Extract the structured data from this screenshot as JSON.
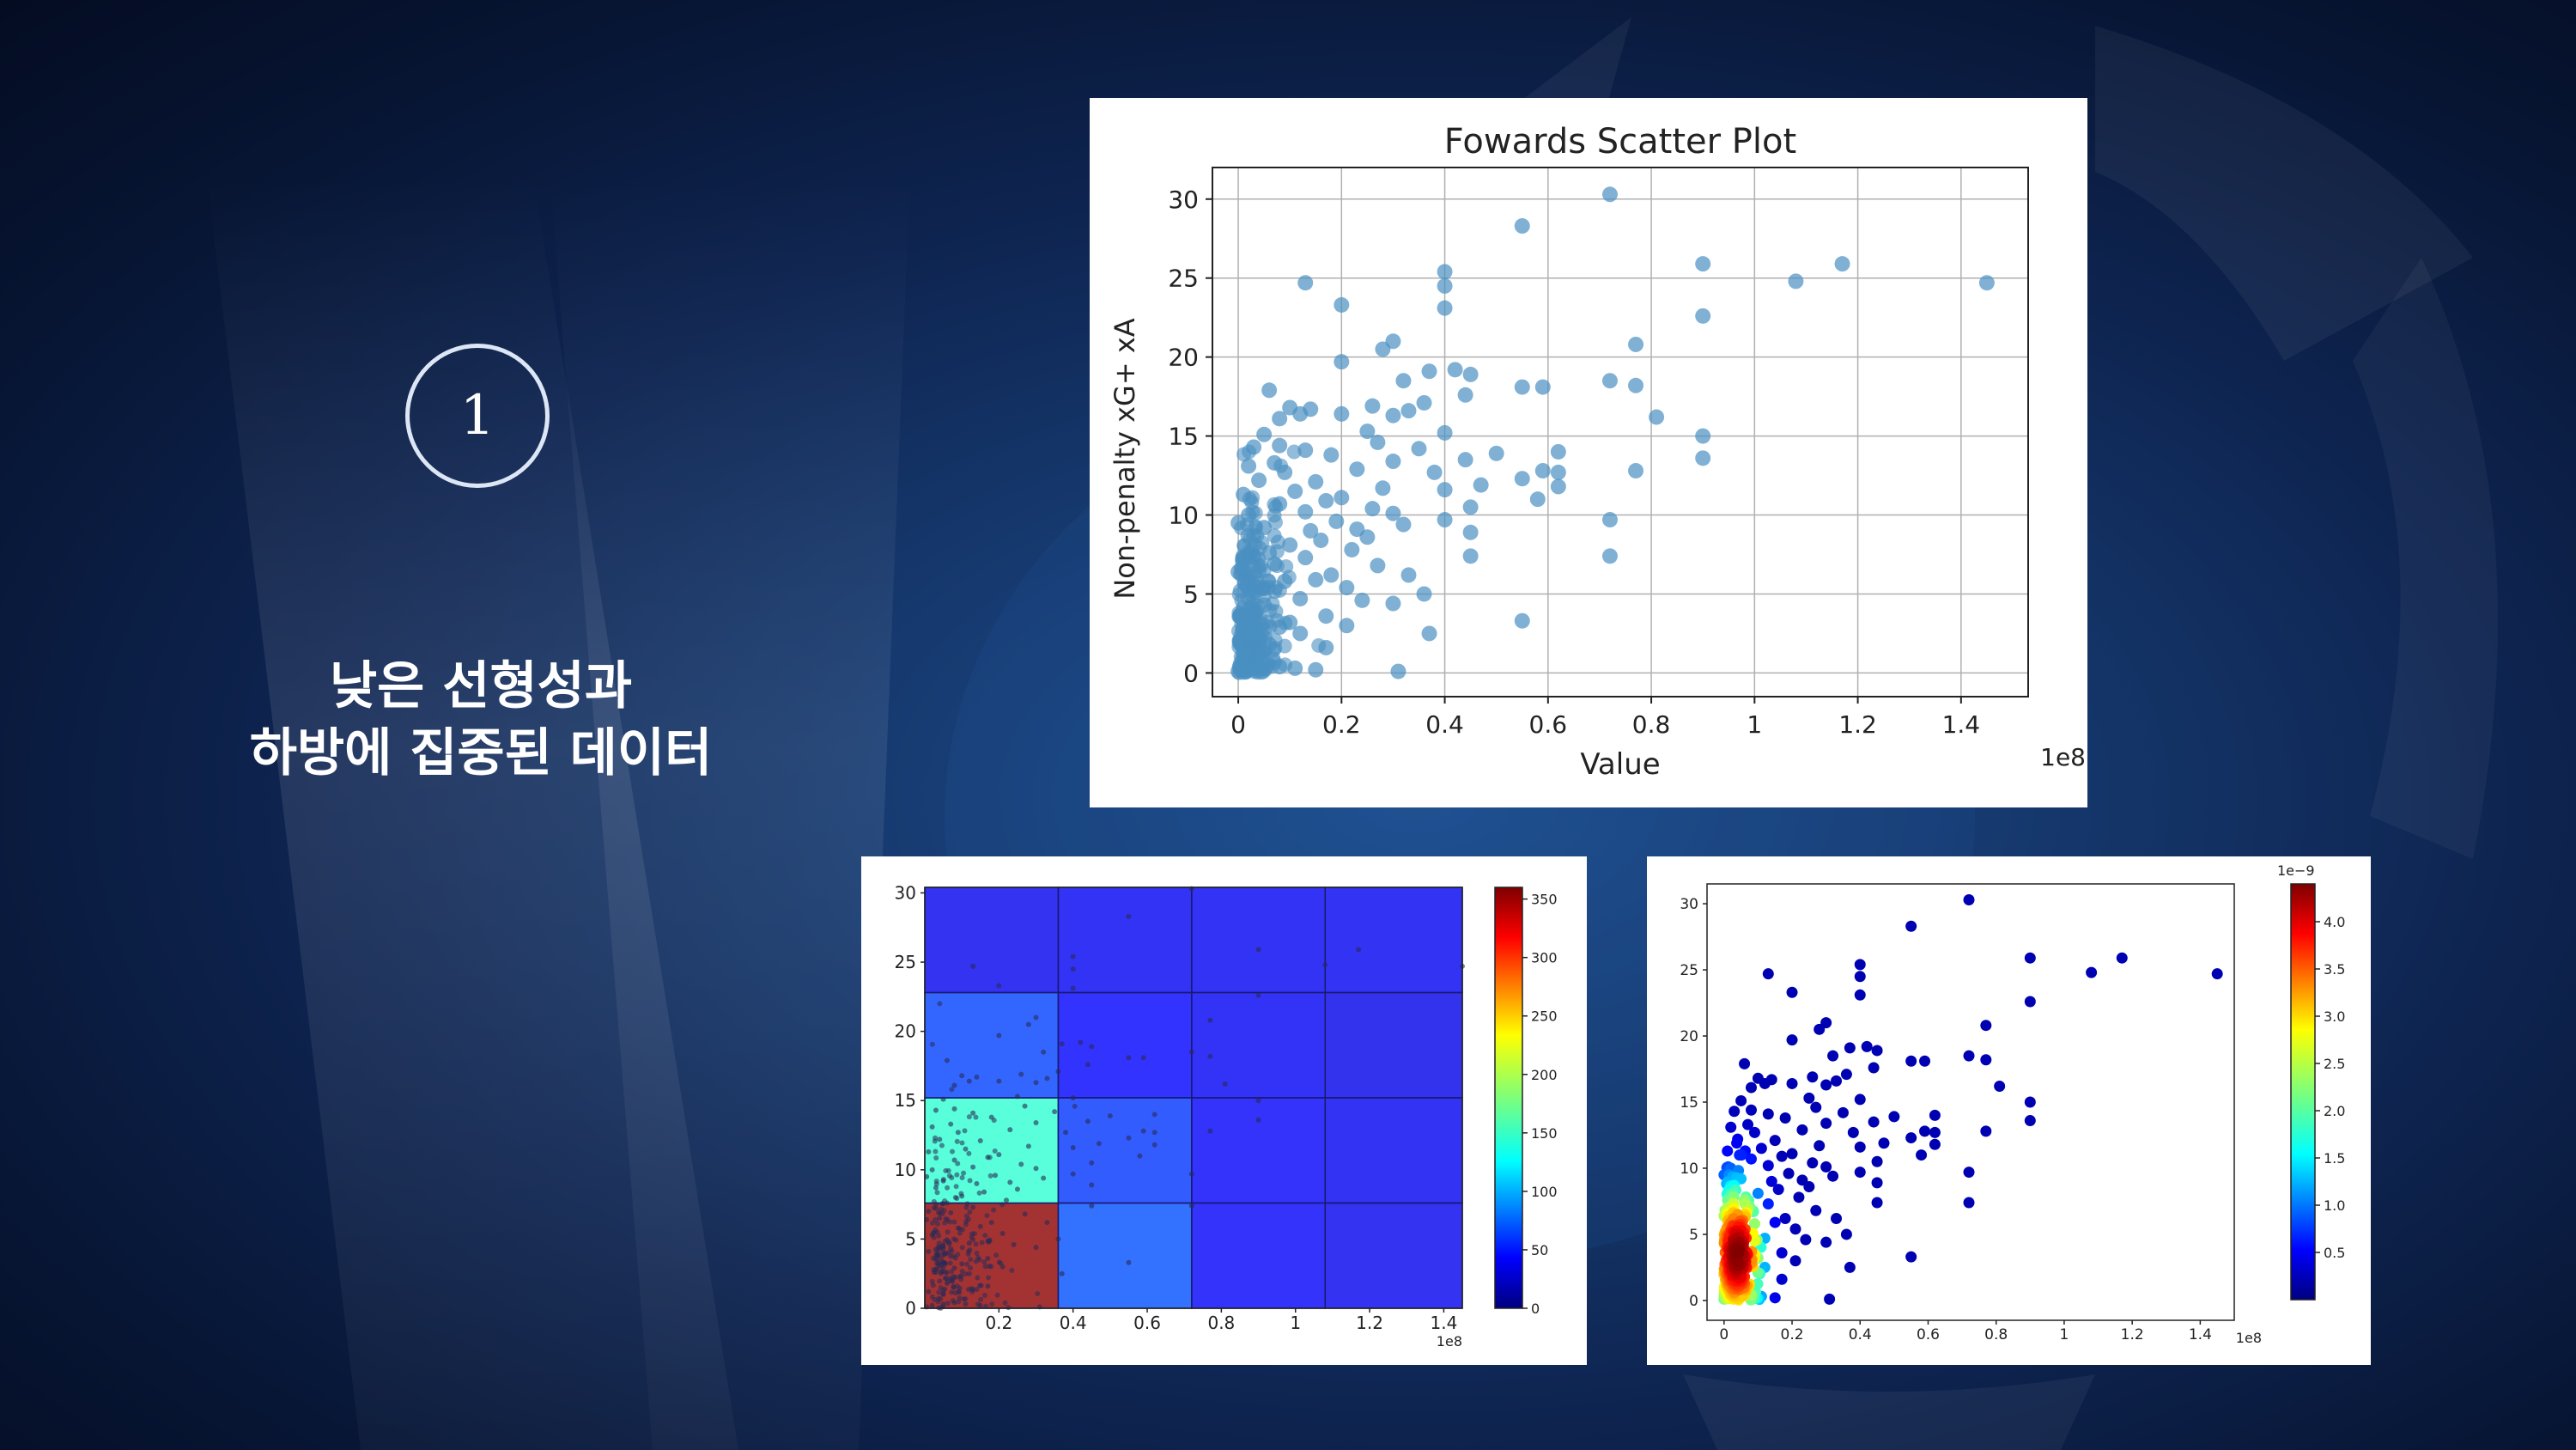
{
  "slide": {
    "badge_number": "1",
    "caption_line1": "낮은 선형성과",
    "caption_line2": "하방에 집중된 데이터"
  },
  "chart_data": [
    {
      "type": "scatter",
      "title": "Fowards Scatter Plot",
      "xlabel": "Value",
      "ylabel": "Non-penalty xG+ xA",
      "x_scale_label": "1e8",
      "xlim": [
        -0.05,
        1.53
      ],
      "ylim": [
        -1.5,
        32
      ],
      "xticks": [
        0.0,
        0.2,
        0.4,
        0.6,
        0.8,
        1.0,
        1.2,
        1.4
      ],
      "yticks": [
        0,
        5,
        10,
        15,
        20,
        25,
        30
      ],
      "grid": true,
      "color": "#4a90c2",
      "points": [
        [
          0.13,
          24.7
        ],
        [
          0.2,
          23.3
        ],
        [
          0.3,
          21.0
        ],
        [
          0.28,
          20.5
        ],
        [
          0.37,
          19.1
        ],
        [
          0.32,
          18.5
        ],
        [
          0.45,
          18.9
        ],
        [
          0.42,
          19.2
        ],
        [
          0.44,
          17.6
        ],
        [
          0.2,
          19.7
        ],
        [
          0.4,
          25.4
        ],
        [
          0.4,
          24.5
        ],
        [
          0.4,
          23.1
        ],
        [
          0.55,
          28.3
        ],
        [
          0.72,
          30.3
        ],
        [
          0.9,
          25.9
        ],
        [
          0.9,
          22.6
        ],
        [
          1.08,
          24.8
        ],
        [
          1.17,
          25.9
        ],
        [
          1.45,
          24.7
        ],
        [
          0.77,
          20.8
        ],
        [
          0.72,
          18.5
        ],
        [
          0.77,
          18.2
        ],
        [
          0.55,
          18.1
        ],
        [
          0.59,
          18.1
        ],
        [
          0.81,
          16.2
        ],
        [
          0.9,
          15.0
        ],
        [
          0.9,
          13.6
        ],
        [
          0.62,
          14.0
        ],
        [
          0.62,
          12.7
        ],
        [
          0.62,
          11.8
        ],
        [
          0.55,
          12.3
        ],
        [
          0.59,
          12.8
        ],
        [
          0.58,
          11.0
        ],
        [
          0.77,
          12.8
        ],
        [
          0.72,
          9.7
        ],
        [
          0.72,
          7.4
        ],
        [
          0.55,
          3.3
        ],
        [
          0.37,
          2.5
        ],
        [
          0.31,
          0.1
        ],
        [
          0.06,
          17.9
        ],
        [
          0.1,
          16.8
        ],
        [
          0.14,
          16.7
        ],
        [
          0.12,
          16.4
        ],
        [
          0.08,
          16.1
        ],
        [
          0.2,
          16.4
        ],
        [
          0.26,
          16.9
        ],
        [
          0.33,
          16.6
        ],
        [
          0.36,
          17.1
        ],
        [
          0.3,
          16.3
        ],
        [
          0.08,
          14.4
        ],
        [
          0.13,
          14.1
        ],
        [
          0.18,
          13.8
        ],
        [
          0.25,
          15.3
        ],
        [
          0.4,
          15.2
        ],
        [
          0.5,
          13.9
        ],
        [
          0.47,
          11.9
        ],
        [
          0.44,
          13.5
        ],
        [
          0.38,
          12.7
        ],
        [
          0.35,
          14.2
        ],
        [
          0.28,
          11.7
        ],
        [
          0.3,
          10.1
        ],
        [
          0.32,
          9.4
        ],
        [
          0.25,
          8.6
        ],
        [
          0.22,
          7.8
        ],
        [
          0.27,
          6.8
        ],
        [
          0.33,
          6.2
        ],
        [
          0.21,
          5.4
        ],
        [
          0.36,
          5.0
        ],
        [
          0.4,
          9.7
        ],
        [
          0.45,
          8.9
        ],
        [
          0.45,
          10.5
        ],
        [
          0.4,
          11.6
        ],
        [
          0.45,
          7.4
        ],
        [
          0.3,
          4.4
        ],
        [
          0.18,
          6.2
        ],
        [
          0.15,
          5.9
        ],
        [
          0.17,
          3.6
        ],
        [
          0.12,
          2.5
        ],
        [
          0.17,
          1.6
        ],
        [
          0.15,
          0.2
        ],
        [
          0.08,
          0.4
        ],
        [
          0.05,
          0.3
        ],
        [
          0.02,
          0.2
        ],
        [
          0.0,
          0.1
        ],
        [
          0.11,
          0.3
        ],
        [
          0.01,
          1.2
        ],
        [
          0.03,
          2.6
        ],
        [
          0.01,
          4.1
        ],
        [
          0.05,
          4.3
        ],
        [
          0.02,
          5.3
        ],
        [
          0.04,
          6.5
        ],
        [
          0.01,
          7.0
        ],
        [
          0.06,
          7.6
        ],
        [
          0.03,
          8.7
        ],
        [
          0.05,
          9.2
        ],
        [
          0.02,
          10.0
        ],
        [
          0.08,
          10.7
        ],
        [
          0.01,
          11.3
        ],
        [
          0.04,
          12.2
        ],
        [
          0.02,
          13.1
        ],
        [
          0.09,
          12.7
        ],
        [
          0.11,
          11.5
        ],
        [
          0.13,
          10.2
        ],
        [
          0.14,
          9.0
        ],
        [
          0.1,
          8.1
        ],
        [
          0.07,
          6.9
        ],
        [
          0.09,
          5.8
        ],
        [
          0.12,
          4.7
        ],
        [
          0.1,
          3.2
        ],
        [
          0.06,
          1.8
        ],
        [
          0.08,
          2.9
        ],
        [
          0.13,
          7.3
        ],
        [
          0.16,
          8.4
        ],
        [
          0.19,
          9.6
        ],
        [
          0.17,
          10.9
        ],
        [
          0.15,
          12.1
        ],
        [
          0.2,
          11.1
        ],
        [
          0.23,
          12.9
        ],
        [
          0.27,
          14.6
        ],
        [
          0.3,
          13.4
        ],
        [
          0.26,
          10.4
        ],
        [
          0.23,
          9.1
        ],
        [
          0.21,
          3.0
        ],
        [
          0.24,
          4.6
        ],
        [
          0.03,
          14.3
        ],
        [
          0.05,
          15.1
        ],
        [
          0.07,
          13.3
        ],
        [
          0.0,
          6.4
        ],
        [
          0.0,
          9.5
        ]
      ]
    },
    {
      "type": "heatmap",
      "variant": "2d histogram",
      "x_scale_label": "1e8",
      "xticks": [
        0.2,
        0.4,
        0.6,
        0.8,
        1.0,
        1.2,
        1.4
      ],
      "yticks": [
        0,
        5,
        10,
        15,
        20,
        25,
        30
      ],
      "colorbar_ticks": [
        0,
        50,
        100,
        150,
        200,
        250,
        300,
        350
      ],
      "colorbar_max": 360,
      "x_edges": [
        0.0,
        0.36,
        0.72,
        1.08,
        1.45
      ],
      "y_edges": [
        0,
        7.6,
        15.2,
        22.8,
        30.4
      ],
      "counts": [
        [
          355,
          40,
          8,
          3
        ],
        [
          128,
          30,
          8,
          4
        ],
        [
          35,
          10,
          6,
          1
        ],
        [
          3,
          5,
          5,
          4
        ]
      ]
    },
    {
      "type": "scatter",
      "variant": "density colored",
      "x_scale_label": "1e8",
      "colorbar_label": "1e−9",
      "xticks": [
        0.0,
        0.2,
        0.4,
        0.6,
        0.8,
        1.0,
        1.2,
        1.4
      ],
      "yticks": [
        0,
        5,
        10,
        15,
        20,
        25,
        30
      ],
      "colorbar_ticks": [
        0.5,
        1.0,
        1.5,
        2.0,
        2.5,
        3.0,
        3.5,
        4.0
      ],
      "colorbar_max": 4.4,
      "density_peak": [
        0.04,
        3.5
      ]
    }
  ]
}
